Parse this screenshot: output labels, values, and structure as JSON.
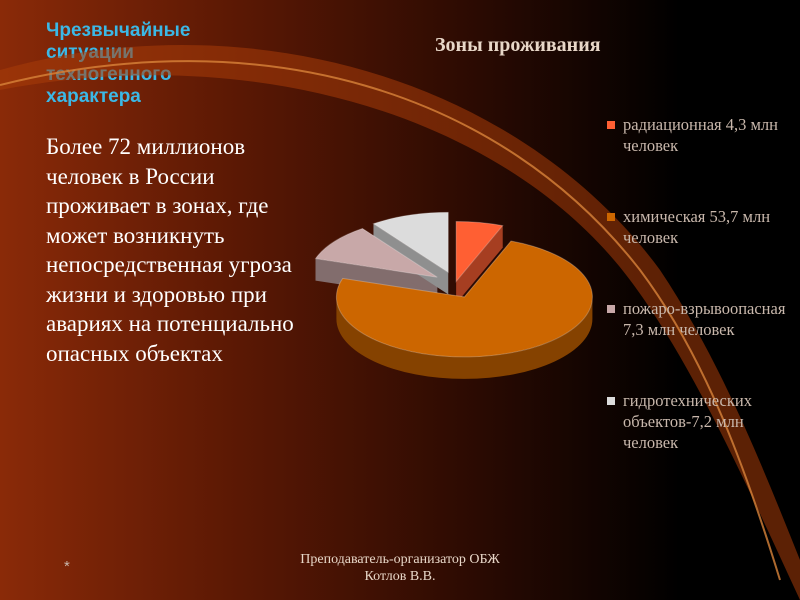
{
  "heading": "Чрезвычайные ситуации техногенного характера",
  "body_text": "Более 72 миллионов человек в России проживает в зонах, где может возникнуть непосредственная угроза жизни и здоровью при авариях на потенциально опасных объектах",
  "footer": {
    "star": "*",
    "line1": "Преподаватель-организатор ОБЖ",
    "line2": "Котлов В.В."
  },
  "colors": {
    "heading": "#3bb8e6",
    "radiation": "#ff5f33",
    "chemical": "#cc6600",
    "fire": "#c8a8a8",
    "hydro": "#dcdcdc"
  },
  "chart_data": {
    "type": "pie",
    "title": "Зоны проживания",
    "legend_position": "right",
    "labels": [
      "радиационная 4,3 млн человек",
      " химическая 53,7 млн человек",
      "пожаро-взрывоопасная 7,3 млн человек",
      "гидротехнических объектов-7,2 млн человек"
    ],
    "values": [
      4.3,
      53.7,
      7.3,
      7.2
    ]
  }
}
